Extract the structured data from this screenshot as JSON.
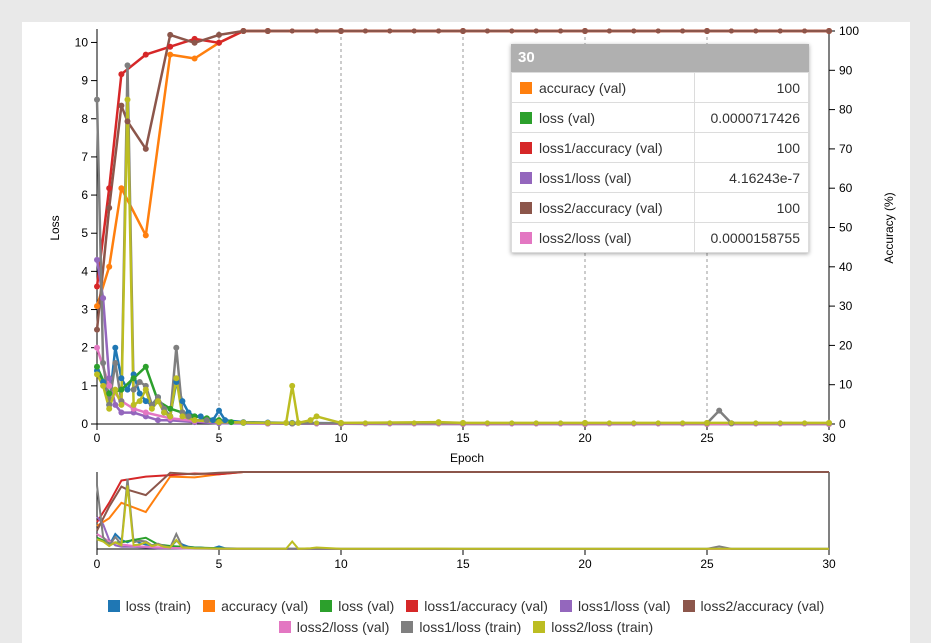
{
  "chart_data": {
    "type": "line",
    "xlabel": "Epoch",
    "ylabel_left": "Loss",
    "ylabel_right": "Accuracy (%)",
    "xlim": [
      0,
      30
    ],
    "ylim_left": [
      0,
      10.3
    ],
    "ylim_right": [
      0,
      100
    ],
    "x_ticks": [
      0,
      5,
      10,
      15,
      20,
      25,
      30
    ],
    "y_left_ticks": [
      0,
      1,
      2,
      3,
      4,
      5,
      6,
      7,
      8,
      9,
      10
    ],
    "y_right_ticks": [
      0,
      10,
      20,
      30,
      40,
      50,
      60,
      70,
      80,
      90,
      100
    ],
    "vertical_gridlines": [
      5,
      10,
      15,
      20,
      25,
      30
    ],
    "legend_position": "bottom",
    "series": [
      {
        "name": "loss (train)",
        "axis": "left",
        "color": "#1f77b4",
        "x": [
          0,
          0.25,
          0.5,
          0.75,
          1,
          1.25,
          1.5,
          1.75,
          2,
          2.25,
          2.5,
          2.75,
          3,
          3.25,
          3.5,
          3.75,
          4,
          4.25,
          4.5,
          4.75,
          5,
          5.25,
          6,
          7,
          8,
          10,
          15,
          20,
          25,
          30
        ],
        "values": [
          1.4,
          1.1,
          0.5,
          2.0,
          1.2,
          0.9,
          1.3,
          0.8,
          0.6,
          0.5,
          0.7,
          0.3,
          0.2,
          1.1,
          0.6,
          0.3,
          0.2,
          0.2,
          0.1,
          0.1,
          0.35,
          0.1,
          0.05,
          0.04,
          0.03,
          0.02,
          0.02,
          0.02,
          0.02,
          0.02
        ]
      },
      {
        "name": "accuracy (val)",
        "axis": "right",
        "color": "#ff7f0e",
        "x": [
          0,
          0.5,
          1,
          2,
          3,
          4,
          5,
          6,
          7,
          10,
          15,
          20,
          25,
          30
        ],
        "values": [
          30,
          40,
          60,
          48,
          94,
          93,
          97,
          100,
          100,
          100,
          100,
          100,
          100,
          100
        ]
      },
      {
        "name": "loss (val)",
        "axis": "left",
        "color": "#2ca02c",
        "x": [
          0,
          0.5,
          1,
          1.5,
          2,
          2.5,
          3,
          3.5,
          4,
          4.5,
          5,
          5.5,
          6,
          7,
          8,
          10,
          15,
          20,
          25,
          30
        ],
        "values": [
          1.5,
          0.8,
          0.9,
          1.2,
          1.5,
          0.6,
          0.4,
          0.3,
          0.2,
          0.15,
          0.1,
          0.05,
          0.03,
          0.02,
          0.01,
          0.005,
          0.002,
          0.001,
          0.001,
          7.17426e-05
        ]
      },
      {
        "name": "loss1/accuracy (val)",
        "axis": "right",
        "color": "#d62728",
        "x": [
          0,
          0.5,
          1,
          2,
          3,
          4,
          5,
          6,
          7,
          10,
          15,
          20,
          25,
          30
        ],
        "values": [
          35,
          60,
          89,
          94,
          96,
          98,
          97,
          100,
          100,
          100,
          100,
          100,
          100,
          100
        ]
      },
      {
        "name": "loss1/loss (val)",
        "axis": "left",
        "color": "#9467bd",
        "x": [
          0,
          0.25,
          0.5,
          0.75,
          1,
          1.5,
          2,
          2.5,
          3,
          4,
          5,
          7,
          10,
          15,
          20,
          25,
          30
        ],
        "values": [
          4.3,
          3.3,
          1.2,
          0.5,
          0.3,
          0.3,
          0.2,
          0.1,
          0.1,
          0.05,
          0.02,
          0.01,
          0.005,
          0.001,
          0.0005,
          0.0001,
          4.16243e-07
        ]
      },
      {
        "name": "loss2/accuracy (val)",
        "axis": "right",
        "color": "#8c564b",
        "x": [
          0,
          0.5,
          1,
          1.25,
          2,
          3,
          4,
          5,
          6,
          7,
          10,
          15,
          20,
          25,
          30
        ],
        "values": [
          24,
          55,
          81,
          77,
          70,
          99,
          97,
          99,
          100,
          100,
          100,
          100,
          100,
          100,
          100
        ]
      },
      {
        "name": "loss2/loss (val)",
        "axis": "left",
        "color": "#e377c2",
        "x": [
          0,
          0.5,
          1,
          1.5,
          2,
          3,
          4,
          5,
          7,
          10,
          15,
          20,
          25,
          30
        ],
        "values": [
          2.0,
          1.0,
          0.6,
          0.4,
          0.3,
          0.15,
          0.08,
          0.05,
          0.02,
          0.01,
          0.002,
          0.001,
          0.0005,
          1.58755e-05
        ]
      },
      {
        "name": "loss1/loss (train)",
        "axis": "left",
        "color": "#7f7f7f",
        "x": [
          0,
          0.25,
          0.5,
          0.75,
          1,
          1.25,
          1.5,
          1.75,
          2,
          2.25,
          2.5,
          2.75,
          3,
          3.25,
          3.5,
          3.75,
          4,
          4.5,
          5,
          6,
          7,
          8,
          10,
          15,
          20,
          25,
          25.5,
          26,
          30
        ],
        "values": [
          8.5,
          1.6,
          0.5,
          1.6,
          0.6,
          9.4,
          0.9,
          1.1,
          1.0,
          0.5,
          0.7,
          0.4,
          0.2,
          2.0,
          0.3,
          0.2,
          0.1,
          0.1,
          0.05,
          0.04,
          0.03,
          0.02,
          0.02,
          0.02,
          0.02,
          0.02,
          0.35,
          0.02,
          0.02
        ]
      },
      {
        "name": "loss2/loss (train)",
        "axis": "left",
        "color": "#bcbd22",
        "x": [
          0,
          0.25,
          0.5,
          0.75,
          1,
          1.25,
          1.5,
          1.75,
          2,
          2.25,
          2.5,
          2.75,
          3,
          3.25,
          3.5,
          4,
          5,
          6,
          7,
          7.75,
          8,
          8.25,
          8.75,
          9,
          10,
          14,
          15,
          20,
          25,
          30
        ],
        "values": [
          1.3,
          1.0,
          0.4,
          0.9,
          0.5,
          8.5,
          0.5,
          0.6,
          0.9,
          0.4,
          0.6,
          0.3,
          0.2,
          1.2,
          0.2,
          0.1,
          0.05,
          0.04,
          0.03,
          0.03,
          1.0,
          0.03,
          0.1,
          0.2,
          0.03,
          0.05,
          0.03,
          0.03,
          0.03,
          0.03
        ]
      }
    ]
  },
  "tooltip": {
    "title": "30",
    "rows": [
      {
        "label": "accuracy (val)",
        "value": "100",
        "color": "#ff7f0e"
      },
      {
        "label": "loss (val)",
        "value": "0.0000717426",
        "color": "#2ca02c"
      },
      {
        "label": "loss1/accuracy (val)",
        "value": "100",
        "color": "#d62728"
      },
      {
        "label": "loss1/loss (val)",
        "value": "4.16243e-7",
        "color": "#9467bd"
      },
      {
        "label": "loss2/accuracy (val)",
        "value": "100",
        "color": "#8c564b"
      },
      {
        "label": "loss2/loss (val)",
        "value": "0.0000158755",
        "color": "#e377c2"
      }
    ]
  },
  "legend": {
    "rows": [
      [
        {
          "label": "loss (train)",
          "color": "#1f77b4"
        },
        {
          "label": "accuracy (val)",
          "color": "#ff7f0e"
        },
        {
          "label": "loss (val)",
          "color": "#2ca02c"
        },
        {
          "label": "loss1/accuracy (val)",
          "color": "#d62728"
        },
        {
          "label": "loss1/loss (val)",
          "color": "#9467bd"
        },
        {
          "label": "loss2/accuracy (val)",
          "color": "#8c564b"
        }
      ],
      [
        {
          "label": "loss2/loss (val)",
          "color": "#e377c2"
        },
        {
          "label": "loss1/loss (train)",
          "color": "#7f7f7f"
        },
        {
          "label": "loss2/loss (train)",
          "color": "#bcbd22"
        }
      ]
    ]
  }
}
